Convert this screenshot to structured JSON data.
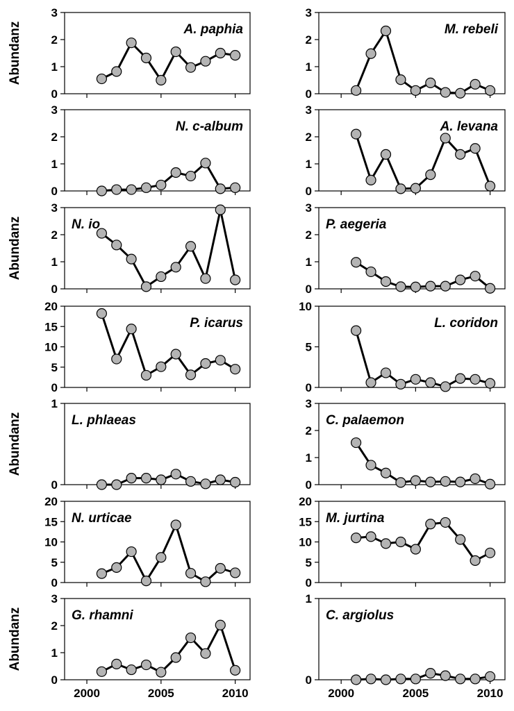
{
  "figure": {
    "ylabel": "Abundanz",
    "x_ticks": [
      2000,
      2005,
      2010
    ]
  },
  "chart_data": [
    {
      "type": "line",
      "title": "A. paphia",
      "ylim": [
        0,
        3
      ],
      "yticks": [
        0,
        1,
        2,
        3
      ],
      "xlim": [
        1998.5,
        2011
      ],
      "grid": false,
      "x": [
        2001,
        2002,
        2003,
        2004,
        2005,
        2006,
        2007,
        2008,
        2009,
        2010
      ],
      "y": [
        0.55,
        0.82,
        1.88,
        1.32,
        0.5,
        1.55,
        0.97,
        1.2,
        1.5,
        1.42
      ]
    },
    {
      "type": "line",
      "title": "M. rebeli",
      "ylim": [
        0,
        3
      ],
      "yticks": [
        0,
        1,
        2,
        3
      ],
      "xlim": [
        1998.5,
        2011
      ],
      "grid": false,
      "x": [
        2001,
        2002,
        2003,
        2004,
        2005,
        2006,
        2007,
        2008,
        2009,
        2010
      ],
      "y": [
        0.12,
        1.48,
        2.32,
        0.52,
        0.12,
        0.4,
        0.05,
        0.02,
        0.35,
        0.12
      ]
    },
    {
      "type": "line",
      "title": "N. c-album",
      "ylim": [
        0,
        3
      ],
      "yticks": [
        0,
        1,
        2,
        3
      ],
      "xlim": [
        1998.5,
        2011
      ],
      "grid": false,
      "x": [
        2001,
        2002,
        2003,
        2004,
        2005,
        2006,
        2007,
        2008,
        2009,
        2010
      ],
      "y": [
        0.0,
        0.05,
        0.05,
        0.12,
        0.22,
        0.68,
        0.55,
        1.03,
        0.08,
        0.12
      ]
    },
    {
      "type": "line",
      "title": "A. levana",
      "ylim": [
        0,
        3
      ],
      "yticks": [
        0,
        1,
        2,
        3
      ],
      "xlim": [
        1998.5,
        2011
      ],
      "grid": false,
      "x": [
        2001,
        2002,
        2003,
        2004,
        2005,
        2006,
        2007,
        2008,
        2009,
        2010
      ],
      "y": [
        2.1,
        0.4,
        1.35,
        0.08,
        0.1,
        0.6,
        1.95,
        1.35,
        1.57,
        0.18
      ]
    },
    {
      "type": "line",
      "title": "N. io",
      "ylim": [
        0,
        3
      ],
      "yticks": [
        0,
        1,
        2,
        3
      ],
      "xlim": [
        1998.5,
        2011
      ],
      "grid": false,
      "x": [
        2001,
        2002,
        2003,
        2004,
        2005,
        2006,
        2007,
        2008,
        2009,
        2010
      ],
      "y": [
        2.05,
        1.62,
        1.1,
        0.08,
        0.45,
        0.8,
        1.57,
        0.38,
        2.92,
        0.33
      ]
    },
    {
      "type": "line",
      "title": "P. aegeria",
      "ylim": [
        0,
        3
      ],
      "yticks": [
        0,
        1,
        2,
        3
      ],
      "xlim": [
        1998.5,
        2011
      ],
      "grid": false,
      "x": [
        2001,
        2002,
        2003,
        2004,
        2005,
        2006,
        2007,
        2008,
        2009,
        2010
      ],
      "y": [
        0.98,
        0.63,
        0.27,
        0.08,
        0.07,
        0.1,
        0.1,
        0.33,
        0.47,
        0.02
      ]
    },
    {
      "type": "line",
      "title": "P. icarus",
      "ylim": [
        0,
        20
      ],
      "yticks": [
        0,
        5,
        10,
        15,
        20
      ],
      "xlim": [
        1998.5,
        2011
      ],
      "grid": false,
      "x": [
        2001,
        2002,
        2003,
        2004,
        2005,
        2006,
        2007,
        2008,
        2009,
        2010
      ],
      "y": [
        18.2,
        7.0,
        14.4,
        3.0,
        5.1,
        8.2,
        3.1,
        5.9,
        6.7,
        4.5
      ]
    },
    {
      "type": "line",
      "title": "L. coridon",
      "ylim": [
        0,
        10
      ],
      "yticks": [
        0,
        5,
        10
      ],
      "xlim": [
        1998.5,
        2011
      ],
      "grid": false,
      "x": [
        2001,
        2002,
        2003,
        2004,
        2005,
        2006,
        2007,
        2008,
        2009,
        2010
      ],
      "y": [
        7.0,
        0.6,
        1.8,
        0.4,
        1.0,
        0.6,
        0.1,
        1.1,
        1.0,
        0.5
      ]
    },
    {
      "type": "line",
      "title": "L. phlaeas",
      "ylim": [
        0,
        1
      ],
      "yticks": [
        0,
        1
      ],
      "xlim": [
        1998.5,
        2011
      ],
      "grid": false,
      "x": [
        2001,
        2002,
        2003,
        2004,
        2005,
        2006,
        2007,
        2008,
        2009,
        2010
      ],
      "y": [
        0.0,
        0.0,
        0.08,
        0.08,
        0.06,
        0.13,
        0.04,
        0.01,
        0.06,
        0.03
      ]
    },
    {
      "type": "line",
      "title": "C. palaemon",
      "ylim": [
        0,
        3
      ],
      "yticks": [
        0,
        1,
        2,
        3
      ],
      "xlim": [
        1998.5,
        2011
      ],
      "grid": false,
      "x": [
        2001,
        2002,
        2003,
        2004,
        2005,
        2006,
        2007,
        2008,
        2009,
        2010
      ],
      "y": [
        1.55,
        0.72,
        0.43,
        0.08,
        0.15,
        0.1,
        0.12,
        0.1,
        0.22,
        0.02
      ]
    },
    {
      "type": "line",
      "title": "N. urticae",
      "ylim": [
        0,
        20
      ],
      "yticks": [
        0,
        5,
        10,
        15,
        20
      ],
      "xlim": [
        1998.5,
        2011
      ],
      "grid": false,
      "x": [
        2001,
        2002,
        2003,
        2004,
        2005,
        2006,
        2007,
        2008,
        2009,
        2010
      ],
      "y": [
        2.2,
        3.7,
        7.6,
        0.4,
        6.2,
        14.2,
        2.3,
        0.2,
        3.5,
        2.4
      ]
    },
    {
      "type": "line",
      "title": "M. jurtina",
      "ylim": [
        0,
        20
      ],
      "yticks": [
        0,
        5,
        10,
        15,
        20
      ],
      "xlim": [
        1998.5,
        2011
      ],
      "grid": false,
      "x": [
        2001,
        2002,
        2003,
        2004,
        2005,
        2006,
        2007,
        2008,
        2009,
        2010
      ],
      "y": [
        11.0,
        11.3,
        9.6,
        10.0,
        8.2,
        14.4,
        14.8,
        10.6,
        5.4,
        7.3
      ]
    },
    {
      "type": "line",
      "title": "G. rhamni",
      "ylim": [
        0,
        3
      ],
      "yticks": [
        0,
        1,
        2,
        3
      ],
      "xlim": [
        1998.5,
        2011
      ],
      "grid": false,
      "x": [
        2001,
        2002,
        2003,
        2004,
        2005,
        2006,
        2007,
        2008,
        2009,
        2010
      ],
      "y": [
        0.3,
        0.58,
        0.37,
        0.55,
        0.28,
        0.82,
        1.55,
        0.97,
        2.02,
        0.35
      ]
    },
    {
      "type": "line",
      "title": "C. argiolus",
      "ylim": [
        0,
        1
      ],
      "yticks": [
        0,
        1
      ],
      "xlim": [
        1998.5,
        2011
      ],
      "grid": false,
      "x": [
        2001,
        2002,
        2003,
        2004,
        2005,
        2006,
        2007,
        2008,
        2009,
        2010
      ],
      "y": [
        0.0,
        0.01,
        0.0,
        0.01,
        0.01,
        0.08,
        0.05,
        0.01,
        0.01,
        0.04
      ]
    }
  ]
}
